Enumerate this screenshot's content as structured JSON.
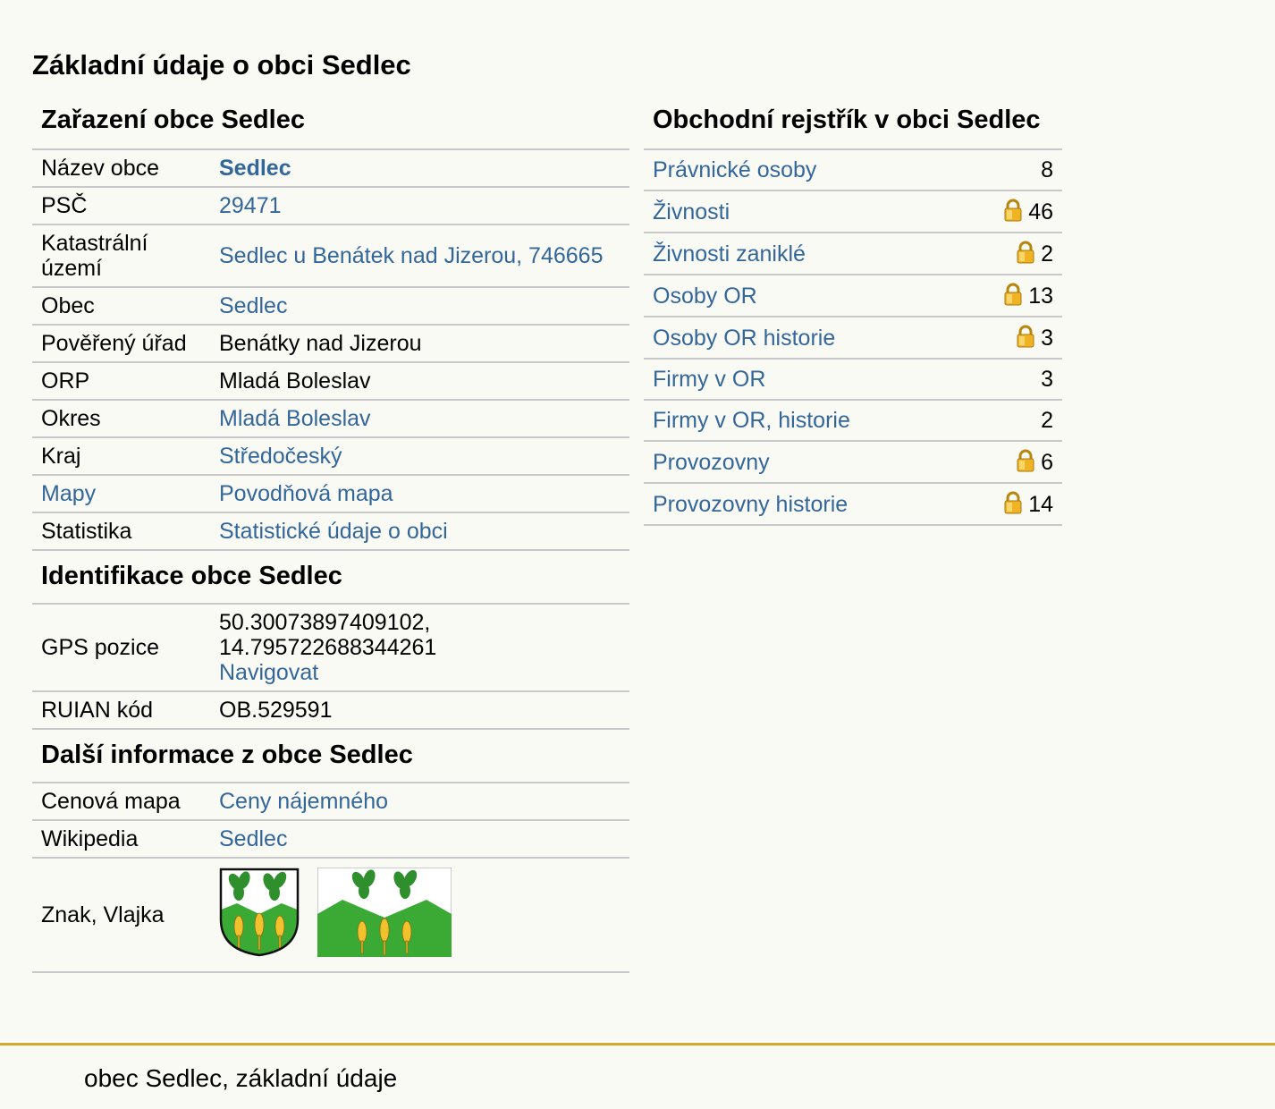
{
  "title": "Základní údaje o obci Sedlec",
  "zarazeni": {
    "heading": "Zařazení obce Sedlec",
    "rows": [
      {
        "k": "Název obce",
        "v": "Sedlec"
      },
      {
        "k": "PSČ",
        "v": "29471"
      },
      {
        "k": "Katastrální území",
        "v": "Sedlec u Benátek nad Jizerou, 746665"
      },
      {
        "k": "Obec",
        "v": "Sedlec"
      },
      {
        "k": "Pověřený úřad",
        "v": "Benátky nad Jizerou"
      },
      {
        "k": "ORP",
        "v": "Mladá Boleslav"
      },
      {
        "k": "Okres",
        "v": "Mladá Boleslav"
      },
      {
        "k": "Kraj",
        "v": "Středočeský"
      },
      {
        "k": "Mapy",
        "v": "Povodňová mapa"
      },
      {
        "k": "Statistika",
        "v": "Statistické údaje o obci"
      }
    ]
  },
  "identifikace": {
    "heading": "Identifikace obce Sedlec",
    "gps_label": "GPS pozice",
    "gps_lat": "50.30073897409102,",
    "gps_lon": "14.795722688344261",
    "navigate": "Navigovat",
    "ruian_label": "RUIAN kód",
    "ruian_value": "OB.529591"
  },
  "dalsi": {
    "heading": "Další informace z obce Sedlec",
    "rows": [
      {
        "k": "Cenová mapa",
        "v": "Ceny nájemného"
      },
      {
        "k": "Wikipedia",
        "v": "Sedlec"
      }
    ],
    "emblem_label": "Znak, Vlajka"
  },
  "rejstrik": {
    "heading": "Obchodní rejstřík v obci Sedlec",
    "rows": [
      {
        "k": "Právnické osoby",
        "v": "8",
        "locked": false
      },
      {
        "k": "Živnosti",
        "v": "46",
        "locked": true
      },
      {
        "k": "Živnosti zaniklé",
        "v": "2",
        "locked": true
      },
      {
        "k": "Osoby OR",
        "v": "13",
        "locked": true
      },
      {
        "k": "Osoby OR historie",
        "v": "3",
        "locked": true
      },
      {
        "k": "Firmy v OR",
        "v": "3",
        "locked": false
      },
      {
        "k": "Firmy v OR, historie",
        "v": "2",
        "locked": false
      },
      {
        "k": "Provozovny",
        "v": "6",
        "locked": true
      },
      {
        "k": "Provozovny historie",
        "v": "14",
        "locked": true
      }
    ]
  },
  "footer": "obec Sedlec, základní údaje",
  "colors": {
    "link": "#336699",
    "rule": "#c8c8c8",
    "accent": "#d4a92a",
    "green": "#3aaa35",
    "gold": "#f2c12e"
  },
  "icons": {
    "lock": "lock-icon",
    "coat_of_arms": "coat-of-arms-image",
    "flag": "flag-image"
  }
}
